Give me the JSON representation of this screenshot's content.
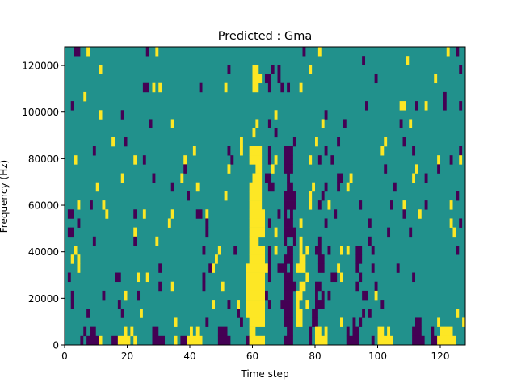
{
  "chart_data": {
    "type": "heatmap",
    "title": "Predicted : Gma",
    "xlabel": "Time step",
    "ylabel": "Frequency (Hz)",
    "xlim": [
      0,
      128
    ],
    "ylim": [
      0,
      128000
    ],
    "n_time_steps": 128,
    "n_freq_bins": 33,
    "xticks": [
      "0",
      "20",
      "40",
      "60",
      "80",
      "100",
      "120"
    ],
    "xtick_values": [
      0,
      20,
      40,
      60,
      80,
      100,
      120
    ],
    "yticks": [
      "0",
      "20000",
      "40000",
      "60000",
      "80000",
      "100000",
      "120000"
    ],
    "ytick_values": [
      0,
      20000,
      40000,
      60000,
      80000,
      100000,
      120000
    ],
    "colors": {
      "P": "#440154",
      "T": "#21918c",
      "Y": "#fde725"
    },
    "background_value": "T",
    "value_legend": {
      "P": "low",
      "T": "mid",
      "Y": "high"
    },
    "rows_top_to_bottom": [
      "P3-4,Y7,P26,Y29,P76,Y81,Y122,P125",
      "P95,Y109",
      "Y11,P52,Y60-61,P66,P68,Y78,P126",
      "Y60-62,P64-65,P68,P99,Y118",
      "P25-26,Y28,Y30,P43,Y51,Y60-61,P65,P69,P71,Y75",
      "Y6,P121",
      "P2,P96,Y107-108,P112,Y115,P121,P126",
      "Y11,P18,Y67,P83",
      "P27,Y34,Y61,P65,Y82,P89,P107,Y110",
      "Y60,P67",
      "Y15,P19,Y56,P73,Y80,P87,Y102,P108",
      "P9,Y41,P52,Y56,Y59-62,P65,P70-72,P83,Y101,P111,P126",
      "Y3,Y22,P25,Y38,P53,Y59-62,P65,Y67,P70-72,Y78,P81,P85,Y119,P123,Y126",
      "P38,Y52,Y61-62,Y66,P70-72,P102,Y112,P119",
      "Y18,P28,Y37,Y60-62,P64-65,P71,P87-88,Y91,Y111,P115",
      "Y10,P34,Y42,Y59-62,P65-66,P71-72,Y79,P83,P87,Y90,P105",
      "P39,Y51,Y59-62,P70-73,Y78,P82,P125",
      "Y4,P8,Y12,Y59-62,P70-73,Y78,P81,Y84,P94,P104,Y108,P115,Y123",
      "P1-2,Y13,P22,Y25,Y34,P42-43,Y45,Y59-63,P68,P70,P72,P86,P108,Y113",
      "P4,Y33,P45,Y59-63,P65,P70-72,Y75,P83,P97,Y123,P126",
      "P1-2,Y22,P45,Y59-63,Y67,P70-73,P103,P110,Y124",
      "P9,P22,Y29,Y59-61,P70,P73,Y75,P81,P97",
      "Y3,P44,Y49,P54,Y59-63,P65,Y67,P71-72,Y75,Y77,P80-81,P84,Y88,Y90,P93-94,P98,P125",
      "Y2,Y4,Y48,Y59-63,P65,P70-72,Y75-76,P81-82,P93-94",
      "Y4,P30,P46,Y47,Y58-64,P65,P68-70,P72,Y74-76,P81-82,Y87,P93,P98,P106",
      "P1,P16-17,Y23,Y26,P44,Y58-63,P65,P70-72,Y77,P85-86,Y88,P94,P111",
      "P30,Y34,P44,Y50,Y58-63,P70-73,Y75-76,P80-81,P93,P99",
      "P2,P12,Y19,P23,Y58-63,P64,P70-72,Y74-75,P80,P82,P84,P95-96,Y99",
      "P2,P17,Y47,P52,Y55,Y58-63,P65,P69-72,Y74,Y77,P80-82,P101",
      "P7,P18,Y24,P55,Y58-63,P70-72,Y74-75,P79-80,P95,P97,Y125",
      "Y35,P45,P56,Y59-63,P70-72,Y74-75,P79-80,Y88,P92,P94,P112-113,Y119,Y127",
      "P6,P8-9,Y19,Y21,P28-29,Y40,Y42,P49-51,Y59-60,P71-72,P78,Y80-81,Y83,P90,P92-93,Y100-101,Y103,P111-113,P117,Y120-123",
      "P5,P7-10,Y11,P15-16,Y17-20,Y22,P28-31,Y35,P37-38,Y39-43,P49-52,P58,Y59-63,P70-72,P78,Y80-83,P90-93,P98,Y100-104,P111-114,P117-118,Y119-124"
    ]
  }
}
